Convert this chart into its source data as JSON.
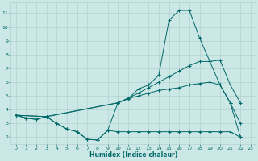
{
  "xlabel": "Humidex (Indice chaleur)",
  "bg_color": "#cce8e6",
  "grid_color": "#aaccca",
  "line_color": "#006868",
  "xlim": [
    -0.5,
    23.5
  ],
  "ylim": [
    1.5,
    11.8
  ],
  "xticks": [
    0,
    1,
    2,
    3,
    4,
    5,
    6,
    7,
    8,
    9,
    10,
    11,
    12,
    13,
    14,
    15,
    16,
    17,
    18,
    19,
    20,
    21,
    22,
    23
  ],
  "yticks": [
    2,
    3,
    4,
    5,
    6,
    7,
    8,
    9,
    10,
    11
  ],
  "series": [
    {
      "x": [
        0,
        1,
        2,
        3,
        4,
        5,
        6,
        7,
        8,
        9,
        10,
        11,
        12,
        13,
        14,
        15,
        16,
        17,
        18,
        19,
        20,
        21,
        22
      ],
      "y": [
        3.6,
        3.4,
        3.3,
        3.5,
        3.0,
        2.6,
        2.4,
        1.85,
        1.8,
        2.5,
        2.4,
        2.4,
        2.4,
        2.4,
        2.4,
        2.4,
        2.4,
        2.4,
        2.4,
        2.4,
        2.4,
        2.4,
        2.0
      ]
    },
    {
      "x": [
        0,
        1,
        2,
        3,
        4,
        5,
        6,
        7,
        8,
        9,
        10,
        11,
        12,
        13,
        14,
        15,
        16,
        17,
        18,
        19,
        20,
        21,
        22
      ],
      "y": [
        3.6,
        3.4,
        3.3,
        3.5,
        3.0,
        2.6,
        2.4,
        1.85,
        1.8,
        2.5,
        4.5,
        4.8,
        5.5,
        5.8,
        6.5,
        10.5,
        11.2,
        11.2,
        9.2,
        7.5,
        5.8,
        4.5,
        3.0
      ]
    },
    {
      "x": [
        0,
        3,
        10,
        11,
        12,
        13,
        14,
        15,
        16,
        17,
        18,
        19,
        20,
        21,
        22
      ],
      "y": [
        3.6,
        3.5,
        4.5,
        4.85,
        5.2,
        5.6,
        6.0,
        6.4,
        6.8,
        7.2,
        7.5,
        7.5,
        7.6,
        5.8,
        4.5
      ]
    },
    {
      "x": [
        0,
        3,
        10,
        11,
        12,
        13,
        14,
        15,
        16,
        17,
        18,
        19,
        20,
        21,
        22
      ],
      "y": [
        3.6,
        3.5,
        4.5,
        4.8,
        5.0,
        5.2,
        5.4,
        5.5,
        5.6,
        5.8,
        5.9,
        6.0,
        5.8,
        4.5,
        2.0
      ]
    }
  ]
}
